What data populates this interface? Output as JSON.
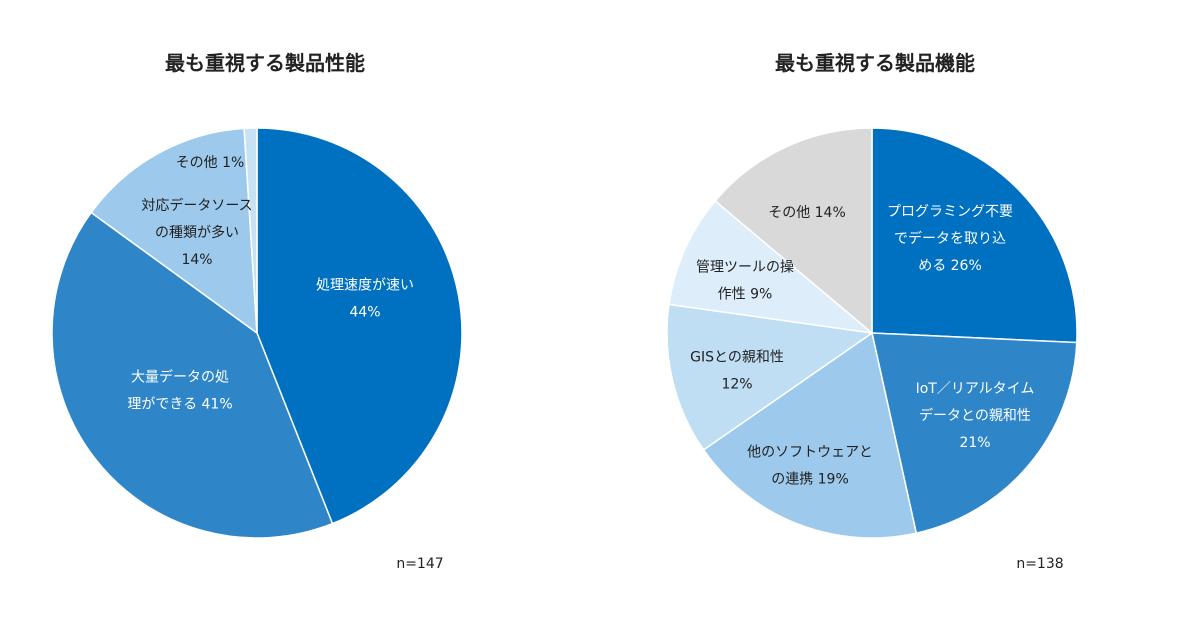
{
  "chart_data": [
    {
      "type": "pie",
      "title": "最も重視する製品性能",
      "note": "n=147",
      "slices": [
        {
          "label_lines": [
            "処理速度が速い",
            "44%"
          ],
          "value": 44,
          "color": "#0070C0",
          "text_color": "#ffffff"
        },
        {
          "label_lines": [
            "大量データの処",
            "理ができる 41%"
          ],
          "value": 41,
          "color": "#2E86C8",
          "text_color": "#ffffff"
        },
        {
          "label_lines": [
            "対応データソース",
            "の種類が多い",
            "14%"
          ],
          "value": 14,
          "color": "#9DCAEC",
          "text_color": "#222222"
        },
        {
          "label_lines": [
            "その他 1%"
          ],
          "value": 1,
          "color": "#C8E2F5",
          "text_color": "#222222"
        }
      ]
    },
    {
      "type": "pie",
      "title": "最も重視する製品機能",
      "note": "n=138",
      "slices": [
        {
          "label_lines": [
            "プログラミング不要",
            "でデータを取り込",
            "める 26%"
          ],
          "value": 26,
          "color": "#0070C0",
          "text_color": "#ffffff"
        },
        {
          "label_lines": [
            "IoT／リアルタイム",
            "データとの親和性",
            "21%"
          ],
          "value": 21,
          "color": "#2E86C8",
          "text_color": "#ffffff"
        },
        {
          "label_lines": [
            "他のソフトウェアと",
            "の連携 19%"
          ],
          "value": 19,
          "color": "#9DCAEC",
          "text_color": "#222222"
        },
        {
          "label_lines": [
            "GISとの親和性",
            "12%"
          ],
          "value": 12,
          "color": "#BFDDF3",
          "text_color": "#222222"
        },
        {
          "label_lines": [
            "管理ツールの操",
            "作性 9%"
          ],
          "value": 9,
          "color": "#DDEEFA",
          "text_color": "#222222"
        },
        {
          "label_lines": [
            "その他 14%"
          ],
          "value": 14,
          "color": "#D9D9D9",
          "text_color": "#222222"
        }
      ]
    }
  ]
}
